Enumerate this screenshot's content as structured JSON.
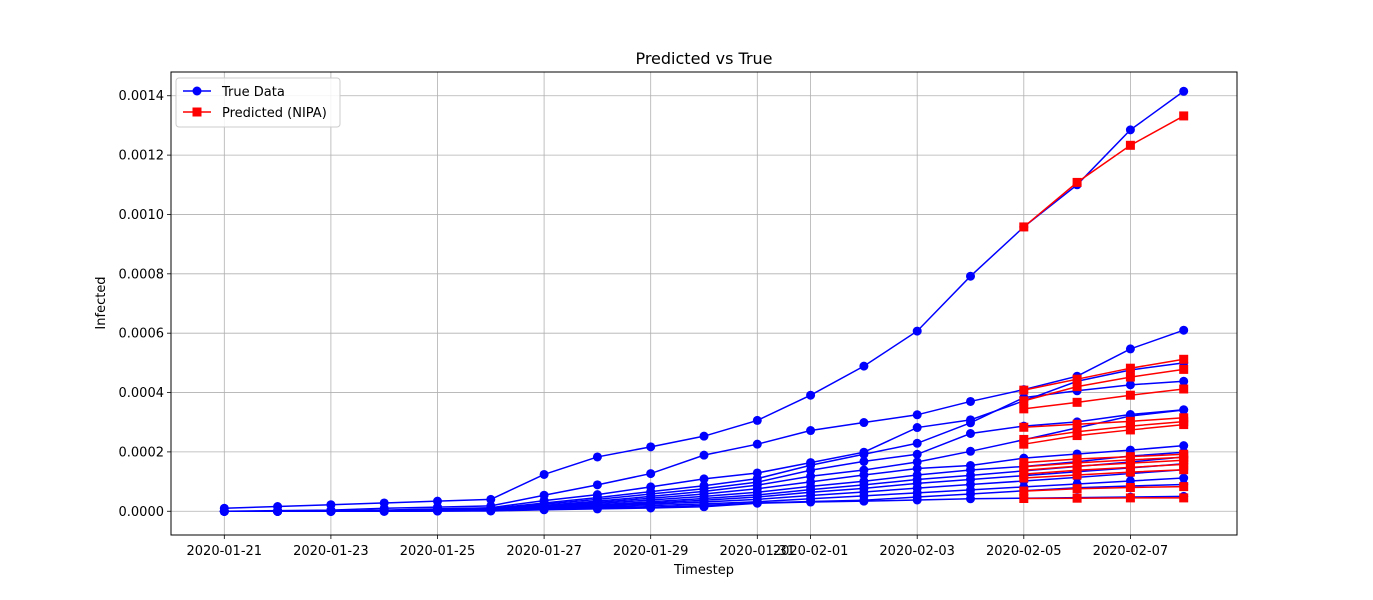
{
  "chart_data": {
    "type": "line",
    "title": "Predicted vs True",
    "xlabel": "Timestep",
    "ylabel": "Infected",
    "x": [
      "2020-01-21",
      "2020-01-22",
      "2020-01-23",
      "2020-01-24",
      "2020-01-25",
      "2020-01-26",
      "2020-01-27",
      "2020-01-28",
      "2020-01-29",
      "2020-01-30",
      "2020-01-31",
      "2020-02-01",
      "2020-02-02",
      "2020-02-03",
      "2020-02-04",
      "2020-02-05",
      "2020-02-06",
      "2020-02-07",
      "2020-02-08"
    ],
    "x_ticks": [
      "2020-01-21",
      "2020-01-23",
      "2020-01-25",
      "2020-01-27",
      "2020-01-29",
      "2020-01-31",
      "2020-02-01",
      "2020-02-03",
      "2020-02-05",
      "2020-02-07"
    ],
    "x_tick_labels": [
      "2020-01-21",
      "2020-01-23",
      "2020-01-25",
      "2020-01-27",
      "2020-01-29",
      "2020-01-31",
      "2020-02-01",
      "2020-02-03",
      "2020-02-05",
      "2020-02-07"
    ],
    "xlim": [
      "2020-01-20",
      "2020-02-09"
    ],
    "ylim": [
      -8e-05,
      0.00148
    ],
    "y_ticks": [
      0.0,
      0.0002,
      0.0004,
      0.0006,
      0.0008,
      0.001,
      0.0012,
      0.0014
    ],
    "y_tick_labels": [
      "0.0000",
      "0.0002",
      "0.0004",
      "0.0006",
      "0.0008",
      "0.0010",
      "0.0012",
      "0.0014"
    ],
    "grid": true,
    "legend_position": "top-left",
    "legend": [
      {
        "label": "True Data",
        "color": "#0000ff",
        "marker": "circle"
      },
      {
        "label": "Predicted (NIPA)",
        "color": "#ff0000",
        "marker": "square"
      }
    ],
    "true_series": [
      [
        1e-05,
        1.6e-05,
        2.2e-05,
        2.8e-05,
        3.4e-05,
        4e-05,
        0.000124,
        0.000183,
        0.000217,
        0.000253,
        0.000306,
        0.000391,
        0.000489,
        0.000607,
        0.000792,
        0.000958,
        0.0011,
        0.001285,
        0.001415
      ],
      [
        0,
        2e-06,
        4e-06,
        1e-05,
        1.4e-05,
        1.8e-05,
        5.4e-05,
        8.9e-05,
        0.000127,
        0.000189,
        0.000226,
        0.000272,
        0.000299,
        0.000325,
        0.00037,
        0.00041,
        0.000455,
        0.000547,
        0.00061
      ],
      [
        0,
        0,
        1e-06,
        4e-06,
        8e-06,
        1.2e-05,
        3.6e-05,
        5.6e-05,
        8.2e-05,
        0.000109,
        0.000129,
        0.000164,
        0.000199,
        0.000282,
        0.000308,
        0.000372,
        0.000438,
        0.000476,
        0.0005
      ],
      [
        0,
        0,
        0,
        3e-06,
        6e-06,
        9e-06,
        2.8e-05,
        4.6e-05,
        6.6e-05,
        8.6e-05,
        0.00011,
        0.000155,
        0.000192,
        0.000229,
        0.000298,
        0.000383,
        0.000406,
        0.000426,
        0.000438
      ],
      [
        0,
        0,
        0,
        2e-06,
        5e-06,
        8e-06,
        2.4e-05,
        4e-05,
        5.8e-05,
        7.6e-05,
        9.8e-05,
        0.000138,
        0.000168,
        0.000192,
        0.000262,
        0.000287,
        0.000301,
        0.000326,
        0.000342
      ],
      [
        0,
        0,
        0,
        2e-06,
        4e-06,
        7e-06,
        2e-05,
        3.4e-05,
        5e-05,
        6.7e-05,
        8.8e-05,
        0.000118,
        0.000139,
        0.000166,
        0.000202,
        0.000241,
        0.000281,
        0.000321,
        0.000341
      ],
      [
        0,
        0,
        0,
        2e-06,
        4e-06,
        6e-06,
        1.8e-05,
        3e-05,
        4.4e-05,
        5.8e-05,
        7.6e-05,
        9.9e-05,
        0.000122,
        0.000144,
        0.000154,
        0.000179,
        0.000193,
        0.000206,
        0.000221
      ],
      [
        0,
        0,
        0,
        1e-06,
        3e-06,
        5e-06,
        1.5e-05,
        2.6e-05,
        3.8e-05,
        5e-05,
        6.4e-05,
        8.4e-05,
        0.000101,
        0.000122,
        0.000139,
        0.000151,
        0.000167,
        0.000186,
        0.000199
      ],
      [
        0,
        0,
        0,
        1e-06,
        3e-06,
        5e-06,
        1.3e-05,
        2.2e-05,
        3.2e-05,
        4.3e-05,
        5.5e-05,
        7.3e-05,
        8.9e-05,
        0.000107,
        0.000121,
        0.000136,
        0.000151,
        0.000166,
        0.000183
      ],
      [
        0,
        0,
        0,
        1e-06,
        2e-06,
        4e-06,
        1.1e-05,
        1.9e-05,
        2.8e-05,
        3.7e-05,
        4.8e-05,
        6.4e-05,
        7.7e-05,
        9.4e-05,
        0.000107,
        0.00012,
        0.000133,
        0.000146,
        0.00016
      ],
      [
        0,
        0,
        0,
        1e-06,
        2e-06,
        3e-06,
        9e-06,
        1.6e-05,
        2.4e-05,
        3.1e-05,
        4e-05,
        5.3e-05,
        6.5e-05,
        7.8e-05,
        9e-05,
        0.000102,
        0.000114,
        0.000127,
        0.00014
      ],
      [
        0,
        0,
        0,
        0,
        1e-06,
        2e-06,
        7e-06,
        1.3e-05,
        1.9e-05,
        2.5e-05,
        3.2e-05,
        4.2e-05,
        5.2e-05,
        6.2e-05,
        7.2e-05,
        8.2e-05,
        9.2e-05,
        0.000102,
        0.000112
      ],
      [
        0,
        0,
        0,
        0,
        1e-06,
        2e-06,
        6e-06,
        1e-05,
        1.4e-05,
        2e-05,
        2.8e-05,
        3.3e-05,
        3.7e-05,
        4.8e-05,
        5.8e-05,
        6.9e-05,
        7.9e-05,
        8.5e-05,
        9e-05
      ],
      [
        0,
        0,
        0,
        0,
        1e-06,
        1e-06,
        5e-06,
        8e-06,
        1.1e-05,
        1.5e-05,
        2.7e-05,
        3.1e-05,
        3.4e-05,
        3.8e-05,
        4.2e-05,
        4.4e-05,
        4.6e-05,
        4.8e-05,
        5e-05
      ]
    ],
    "predicted_x": [
      "2020-02-05",
      "2020-02-06",
      "2020-02-07",
      "2020-02-08"
    ],
    "predicted_series": [
      [
        0.000958,
        0.001108,
        0.001233,
        0.001332
      ],
      [
        0.000408,
        0.000445,
        0.000482,
        0.000512
      ],
      [
        0.000372,
        0.00042,
        0.000452,
        0.000478
      ],
      [
        0.000345,
        0.000367,
        0.000391,
        0.000412
      ],
      [
        0.000283,
        0.000293,
        0.000303,
        0.000315
      ],
      [
        0.000242,
        0.000268,
        0.000287,
        0.000302
      ],
      [
        0.000226,
        0.000255,
        0.000274,
        0.000292
      ],
      [
        0.000164,
        0.000176,
        0.000184,
        0.000192
      ],
      [
        0.00015,
        0.000163,
        0.000173,
        0.000182
      ],
      [
        0.000138,
        0.000152,
        0.000162,
        0.000172
      ],
      [
        0.000125,
        0.000138,
        0.000148,
        0.000158
      ],
      [
        0.000112,
        0.000122,
        0.000132,
        0.00014
      ],
      [
        6.8e-05,
        7.6e-05,
        8e-05,
        8.3e-05
      ],
      [
        4.3e-05,
        4.4e-05,
        4.5e-05,
        4.5e-05
      ]
    ]
  }
}
